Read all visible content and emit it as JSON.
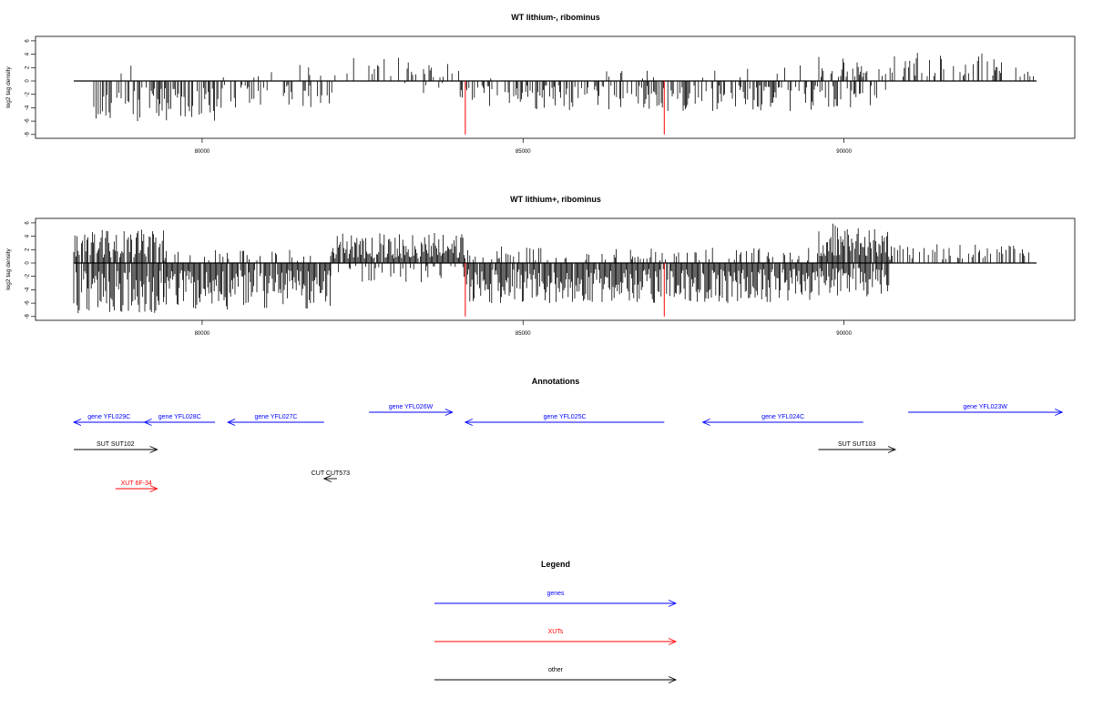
{
  "chart_data": [
    {
      "type": "bar",
      "title": "WT lithium-, ribominus",
      "ylabel": "log2 tag density",
      "xlim": [
        78000,
        93000
      ],
      "ylim": [
        -8,
        6
      ],
      "x_ticks": [
        80000,
        85000,
        90000
      ],
      "y_ticks": [
        6,
        4,
        2,
        0,
        -2,
        -4,
        -6,
        -8
      ],
      "highlight_positions": [
        84100,
        87200
      ],
      "highlight_color": "#ff0000",
      "regions": [
        {
          "from": 78300,
          "to": 79200,
          "pos_density": 0.05,
          "pos_max": 3.8,
          "neg_density": 0.5,
          "neg_max": 6.5
        },
        {
          "from": 79200,
          "to": 80300,
          "pos_density": 0.02,
          "pos_max": 3,
          "neg_density": 0.6,
          "neg_max": 6
        },
        {
          "from": 80300,
          "to": 82000,
          "pos_density": 0.05,
          "pos_max": 2.5,
          "neg_density": 0.4,
          "neg_max": 4
        },
        {
          "from": 82000,
          "to": 84000,
          "pos_density": 0.2,
          "pos_max": 3.6,
          "neg_density": 0.05,
          "neg_max": 2
        },
        {
          "from": 84000,
          "to": 89600,
          "pos_density": 0.03,
          "pos_max": 2.5,
          "neg_density": 0.55,
          "neg_max": 4.5
        },
        {
          "from": 89600,
          "to": 90700,
          "pos_density": 0.5,
          "pos_max": 4,
          "neg_density": 0.4,
          "neg_max": 4
        },
        {
          "from": 90700,
          "to": 93000,
          "pos_density": 0.4,
          "pos_max": 4.3,
          "neg_density": 0,
          "neg_max": 0
        }
      ]
    },
    {
      "type": "bar",
      "title": "WT lithium+, ribominus",
      "ylabel": "log2 tag density",
      "xlim": [
        78000,
        93000
      ],
      "ylim": [
        -8,
        6
      ],
      "x_ticks": [
        80000,
        85000,
        90000
      ],
      "y_ticks": [
        6,
        4,
        2,
        0,
        -2,
        -4,
        -6,
        -8
      ],
      "highlight_positions": [
        84100,
        87200
      ],
      "highlight_color": "#ff0000",
      "regions": [
        {
          "from": 78000,
          "to": 79400,
          "pos_density": 0.8,
          "pos_max": 5,
          "neg_density": 0.9,
          "neg_max": 7.5
        },
        {
          "from": 79400,
          "to": 82000,
          "pos_density": 0.15,
          "pos_max": 2,
          "neg_density": 0.95,
          "neg_max": 7
        },
        {
          "from": 82000,
          "to": 84100,
          "pos_density": 0.95,
          "pos_max": 4.5,
          "neg_density": 0.3,
          "neg_max": 3
        },
        {
          "from": 84100,
          "to": 89600,
          "pos_density": 0.2,
          "pos_max": 2.5,
          "neg_density": 0.95,
          "neg_max": 6
        },
        {
          "from": 89600,
          "to": 90700,
          "pos_density": 0.95,
          "pos_max": 6,
          "neg_density": 0.9,
          "neg_max": 5
        },
        {
          "from": 90700,
          "to": 93000,
          "pos_density": 0.35,
          "pos_max": 2.8,
          "neg_density": 0,
          "neg_max": 0
        }
      ]
    }
  ],
  "annotations": {
    "title": "Annotations",
    "features": [
      {
        "label": "gene YFL029C",
        "kind": "gene",
        "start": 78000,
        "end": 79100,
        "strand": "-",
        "row": 1
      },
      {
        "label": "gene YFL028C",
        "kind": "gene",
        "start": 79100,
        "end": 80200,
        "strand": "-",
        "row": 1
      },
      {
        "label": "gene YFL027C",
        "kind": "gene",
        "start": 80400,
        "end": 81900,
        "strand": "-",
        "row": 1
      },
      {
        "label": "gene YFL026W",
        "kind": "gene",
        "start": 82600,
        "end": 83900,
        "strand": "+",
        "row": 0
      },
      {
        "label": "gene YFL025C",
        "kind": "gene",
        "start": 84100,
        "end": 87200,
        "strand": "-",
        "row": 1
      },
      {
        "label": "gene YFL024C",
        "kind": "gene",
        "start": 87800,
        "end": 90300,
        "strand": "-",
        "row": 1
      },
      {
        "label": "gene YFL023W",
        "kind": "gene",
        "start": 91000,
        "end": 93400,
        "strand": "+",
        "row": 0
      },
      {
        "label": "SUT SUT102",
        "kind": "other",
        "start": 78000,
        "end": 79300,
        "strand": "+",
        "row": 2
      },
      {
        "label": "SUT SUT103",
        "kind": "other",
        "start": 89600,
        "end": 90800,
        "strand": "+",
        "row": 2
      },
      {
        "label": "CUT CUT573",
        "kind": "other",
        "start": 81900,
        "end": 82100,
        "strand": "-",
        "row": 3
      },
      {
        "label": "XUT 6F-34",
        "kind": "xut",
        "start": 78650,
        "end": 79300,
        "strand": "+",
        "row": 4
      }
    ]
  },
  "legend": {
    "title": "Legend",
    "items": [
      {
        "label": "genes",
        "color": "#0000ff"
      },
      {
        "label": "XUTs",
        "color": "#ff0000"
      },
      {
        "label": "other",
        "color": "#000000"
      }
    ]
  },
  "colors": {
    "gene": "#0000ff",
    "xut": "#ff0000",
    "other": "#000000",
    "bars": "#000000"
  }
}
